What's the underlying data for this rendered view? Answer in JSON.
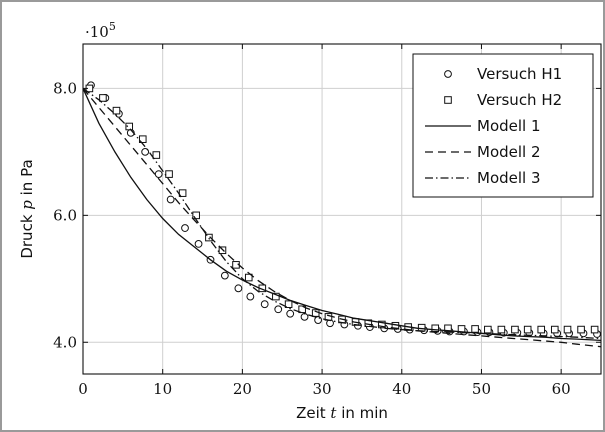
{
  "chart_data": {
    "type": "scatter",
    "title": "",
    "xlabel_parts": [
      "Zeit ",
      "t",
      " in min"
    ],
    "ylabel_parts": [
      "Druck ",
      "p",
      " in Pa"
    ],
    "y_multiplier_base": "·10",
    "y_multiplier_exp": "5",
    "xlim": [
      0,
      65
    ],
    "ylim": [
      3.5,
      8.7
    ],
    "x_ticks": [
      0,
      10,
      20,
      30,
      40,
      50,
      60
    ],
    "x_tick_labels": [
      "0",
      "10",
      "20",
      "30",
      "40",
      "50",
      "60"
    ],
    "y_ticks": [
      4,
      6,
      8
    ],
    "y_tick_labels": [
      "4.0",
      "6.0",
      "8.0"
    ],
    "grid": true,
    "legend_position": "top-right",
    "series": [
      {
        "name": "Versuch H1",
        "style": "circle",
        "x": [
          1,
          2.8,
          4.5,
          6,
          7.8,
          9.5,
          11,
          12.8,
          14.5,
          16,
          17.8,
          19.5,
          21,
          22.8,
          24.5,
          26,
          27.8,
          29.5,
          31,
          32.8,
          34.5,
          36,
          37.8,
          39.5,
          41,
          42.8,
          44.5,
          46,
          47.8,
          49.5,
          51,
          52.8,
          54.5,
          56,
          57.8,
          59.5,
          61,
          62.8,
          64.5
        ],
        "y": [
          8.05,
          7.85,
          7.6,
          7.3,
          7.0,
          6.65,
          6.25,
          5.8,
          5.55,
          5.3,
          5.05,
          4.85,
          4.72,
          4.6,
          4.52,
          4.45,
          4.4,
          4.35,
          4.3,
          4.28,
          4.26,
          4.24,
          4.22,
          4.21,
          4.2,
          4.19,
          4.18,
          4.17,
          4.17,
          4.16,
          4.16,
          4.15,
          4.15,
          4.15,
          4.14,
          4.14,
          4.14,
          4.14,
          4.13
        ]
      },
      {
        "name": "Versuch H2",
        "style": "square",
        "x": [
          0.8,
          2.5,
          4.2,
          5.8,
          7.5,
          9.2,
          10.8,
          12.5,
          14.2,
          15.8,
          17.5,
          19.2,
          20.8,
          22.5,
          24.2,
          25.8,
          27.5,
          29.2,
          30.8,
          32.5,
          34.2,
          35.8,
          37.5,
          39.2,
          40.8,
          42.5,
          44.2,
          45.8,
          47.5,
          49.2,
          50.8,
          52.5,
          54.2,
          55.8,
          57.5,
          59.2,
          60.8,
          62.5,
          64.2
        ],
        "y": [
          8.0,
          7.85,
          7.65,
          7.4,
          7.2,
          6.95,
          6.65,
          6.35,
          6.0,
          5.65,
          5.45,
          5.22,
          5.02,
          4.85,
          4.72,
          4.6,
          4.52,
          4.46,
          4.4,
          4.36,
          4.32,
          4.3,
          4.28,
          4.26,
          4.24,
          4.23,
          4.22,
          4.22,
          4.21,
          4.21,
          4.2,
          4.2,
          4.2,
          4.2,
          4.2,
          4.2,
          4.2,
          4.2,
          4.2
        ]
      },
      {
        "name": "Modell 1",
        "style": "solid",
        "x": [
          0,
          2,
          4,
          6,
          8,
          10,
          12,
          14,
          16,
          18,
          20,
          22,
          24,
          26,
          28,
          30,
          32,
          34,
          36,
          38,
          40,
          42,
          44,
          46,
          48,
          50,
          52,
          54,
          56,
          58,
          60,
          62,
          65
        ],
        "y": [
          8.0,
          7.45,
          7.0,
          6.6,
          6.25,
          5.95,
          5.7,
          5.5,
          5.3,
          5.12,
          4.98,
          4.86,
          4.76,
          4.66,
          4.58,
          4.5,
          4.44,
          4.38,
          4.34,
          4.3,
          4.26,
          4.22,
          4.2,
          4.18,
          4.16,
          4.14,
          4.12,
          4.1,
          4.09,
          4.08,
          4.06,
          4.05,
          4.03
        ]
      },
      {
        "name": "Modell 2",
        "style": "dashed",
        "x": [
          0,
          2,
          4,
          6,
          8,
          10,
          12,
          14,
          16,
          18,
          20,
          22,
          24,
          26,
          28,
          30,
          32,
          34,
          36,
          38,
          40,
          42,
          44,
          46,
          48,
          50,
          52,
          54,
          56,
          58,
          60,
          62,
          65
        ],
        "y": [
          8.0,
          7.7,
          7.4,
          7.1,
          6.8,
          6.5,
          6.2,
          5.92,
          5.65,
          5.4,
          5.17,
          4.97,
          4.8,
          4.66,
          4.54,
          4.45,
          4.38,
          4.32,
          4.28,
          4.24,
          4.21,
          4.18,
          4.16,
          4.14,
          4.12,
          4.1,
          4.08,
          4.06,
          4.04,
          4.02,
          4.0,
          3.97,
          3.93
        ]
      },
      {
        "name": "Modell 3",
        "style": "dashdot",
        "x": [
          0,
          2,
          4,
          6,
          8,
          10,
          12,
          14,
          16,
          18,
          20,
          22,
          24,
          26,
          28,
          30,
          32,
          34,
          36,
          38,
          40,
          42,
          44,
          46,
          48,
          50,
          52,
          54,
          56,
          58,
          60,
          62,
          65
        ],
        "y": [
          8.0,
          7.82,
          7.6,
          7.35,
          7.05,
          6.7,
          6.35,
          5.97,
          5.6,
          5.27,
          5.0,
          4.8,
          4.65,
          4.53,
          4.44,
          4.37,
          4.32,
          4.28,
          4.25,
          4.22,
          4.2,
          4.18,
          4.17,
          4.16,
          4.15,
          4.14,
          4.13,
          4.12,
          4.11,
          4.1,
          4.09,
          4.08,
          4.06
        ]
      }
    ]
  }
}
